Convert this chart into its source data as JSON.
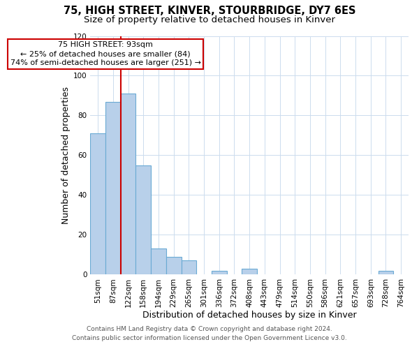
{
  "title1": "75, HIGH STREET, KINVER, STOURBRIDGE, DY7 6ES",
  "title2": "Size of property relative to detached houses in Kinver",
  "xlabel": "Distribution of detached houses by size in Kinver",
  "ylabel": "Number of detached properties",
  "bin_labels": [
    "51sqm",
    "87sqm",
    "122sqm",
    "158sqm",
    "194sqm",
    "229sqm",
    "265sqm",
    "301sqm",
    "336sqm",
    "372sqm",
    "408sqm",
    "443sqm",
    "479sqm",
    "514sqm",
    "550sqm",
    "586sqm",
    "621sqm",
    "657sqm",
    "693sqm",
    "728sqm",
    "764sqm"
  ],
  "bar_heights": [
    71,
    87,
    91,
    55,
    13,
    9,
    7,
    0,
    2,
    0,
    3,
    0,
    0,
    0,
    0,
    0,
    0,
    0,
    0,
    2,
    0
  ],
  "bar_color": "#b8d0ea",
  "bar_edge_color": "#6aaad4",
  "grid_color": "#ccdcee",
  "marker_bin_index": 1,
  "marker_color": "#cc0000",
  "annotation_line1": "75 HIGH STREET: 93sqm",
  "annotation_line2": "← 25% of detached houses are smaller (84)",
  "annotation_line3": "74% of semi-detached houses are larger (251) →",
  "annotation_box_color": "#cc0000",
  "footer1": "Contains HM Land Registry data © Crown copyright and database right 2024.",
  "footer2": "Contains public sector information licensed under the Open Government Licence v3.0.",
  "ylim": [
    0,
    120
  ],
  "yticks": [
    0,
    20,
    40,
    60,
    80,
    100,
    120
  ],
  "title1_fontsize": 10.5,
  "title2_fontsize": 9.5,
  "axis_label_fontsize": 9,
  "tick_fontsize": 7.5,
  "annotation_fontsize": 8,
  "footer_fontsize": 6.5
}
